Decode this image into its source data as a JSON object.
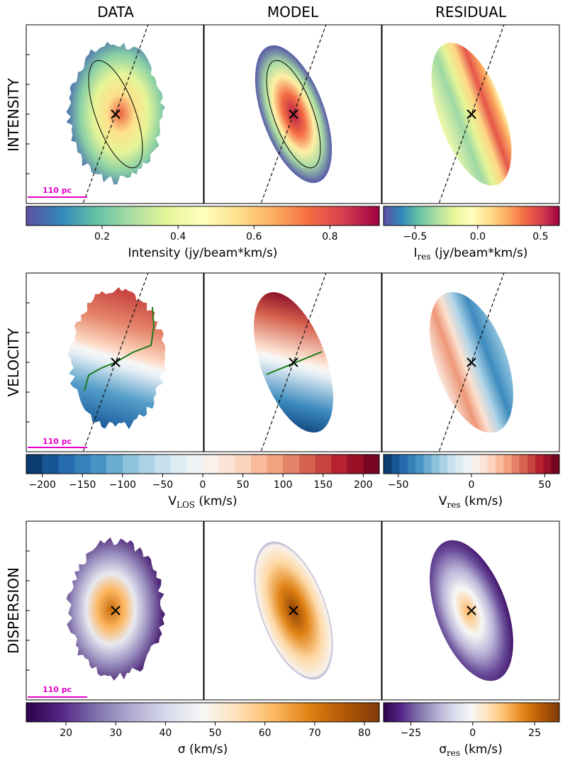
{
  "columns": [
    "DATA",
    "MODEL",
    "RESIDUAL"
  ],
  "rows": [
    {
      "name": "INTENSITY",
      "scale_label": "110 pc",
      "cb_main": {
        "ticks": [
          "0.2",
          "0.4",
          "0.6",
          "0.8"
        ],
        "tick_values": [
          0.2,
          0.4,
          0.6,
          0.8
        ],
        "range": [
          0.0,
          0.93
        ],
        "label": "Intensity (jy/beam*km/s)",
        "cmap": "spectral_r"
      },
      "cb_res": {
        "ticks": [
          "−0.5",
          "0.0",
          "0.5"
        ],
        "tick_values": [
          -0.5,
          0.0,
          0.5
        ],
        "range": [
          -0.75,
          0.65
        ],
        "label_main": "I",
        "label_sub": "res",
        "label_rest": " (jy/beam*km/s)",
        "cmap": "spectral_r"
      }
    },
    {
      "name": "VELOCITY",
      "scale_label": "110 pc",
      "cb_main": {
        "ticks": [
          "−200",
          "−150",
          "−100",
          "−50",
          "0",
          "50",
          "100",
          "150",
          "200"
        ],
        "tick_values": [
          -200,
          -150,
          -100,
          -50,
          0,
          50,
          100,
          150,
          200
        ],
        "range": [
          -220,
          220
        ],
        "label_main": "V",
        "label_sub": "LOS",
        "label_rest": " (km/s)",
        "cmap": "rdbu_r",
        "levels": 22
      },
      "cb_res": {
        "ticks": [
          "−50",
          "0",
          "50"
        ],
        "tick_values": [
          -50,
          0,
          50
        ],
        "range": [
          -60,
          60
        ],
        "label_main": "V",
        "label_sub": "res",
        "label_rest": " (km/s)",
        "cmap": "rdbu_r",
        "levels": 22
      }
    },
    {
      "name": "DISPERSION",
      "scale_label": "110 pc",
      "cb_main": {
        "ticks": [
          "20",
          "30",
          "40",
          "50",
          "60",
          "70",
          "80"
        ],
        "tick_values": [
          20,
          30,
          40,
          50,
          60,
          70,
          80
        ],
        "range": [
          12,
          83
        ],
        "label": "σ (km/s)",
        "cmap": "puor_r"
      },
      "cb_res": {
        "ticks": [
          "−25",
          "0",
          "25"
        ],
        "tick_values": [
          -25,
          0,
          25
        ],
        "range": [
          -36,
          35
        ],
        "label_main": "σ",
        "label_sub": "res",
        "label_rest": " (km/s)",
        "cmap": "puor_r"
      }
    }
  ],
  "chart_data": {
    "type": "heatmap",
    "panels": "3x3 image grid (rows: intensity, velocity, dispersion; columns: data, model, residual)",
    "overlays": {
      "major_axis": "dashed black line through the center (all intensity and velocity panels)",
      "center_marker": "x",
      "ellipse": "thin black ellipse on intensity data and model",
      "zero_velocity_contour": "green line on velocity data and model"
    },
    "colorbars": [
      {
        "row": "intensity",
        "panel": "data/model",
        "range": [
          0.0,
          0.93
        ],
        "ticks": [
          0.2,
          0.4,
          0.6,
          0.8
        ]
      },
      {
        "row": "intensity",
        "panel": "residual",
        "range": [
          -0.75,
          0.65
        ],
        "ticks": [
          -0.5,
          0.0,
          0.5
        ]
      },
      {
        "row": "velocity",
        "panel": "data/model",
        "range": [
          -220,
          220
        ],
        "ticks": [
          -200,
          -150,
          -100,
          -50,
          0,
          50,
          100,
          150,
          200
        ]
      },
      {
        "row": "velocity",
        "panel": "residual",
        "range": [
          -60,
          60
        ],
        "ticks": [
          -50,
          0,
          50
        ]
      },
      {
        "row": "dispersion",
        "panel": "data/model",
        "range": [
          12,
          83
        ],
        "ticks": [
          20,
          30,
          40,
          50,
          60,
          70,
          80
        ]
      },
      {
        "row": "dispersion",
        "panel": "residual",
        "range": [
          -36,
          35
        ],
        "ticks": [
          -25,
          0,
          25
        ]
      }
    ]
  }
}
